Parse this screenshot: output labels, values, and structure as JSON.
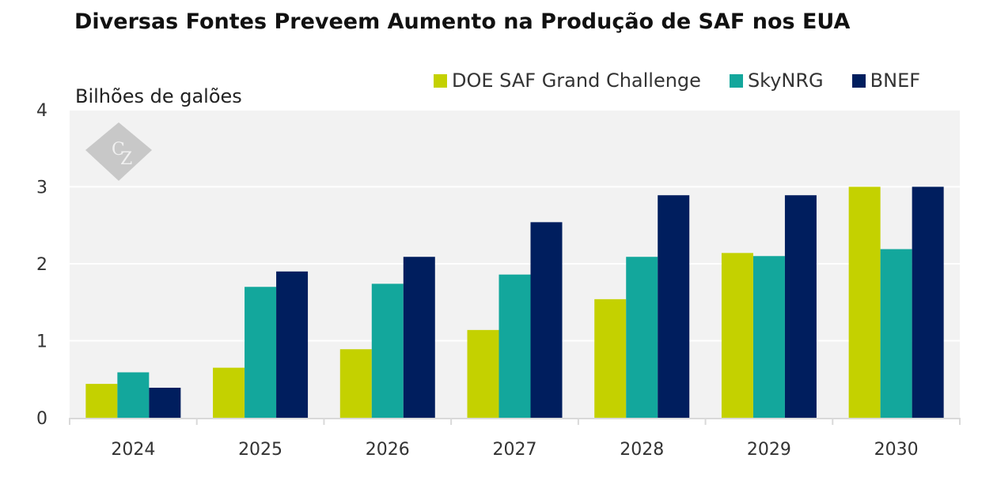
{
  "chart_data": {
    "type": "bar",
    "title": "Diversas Fontes Preveem Aumento na Produção de SAF nos EUA",
    "xlabel": "",
    "ylabel": "Bilhões de galões",
    "ylim": [
      0,
      4
    ],
    "yticks": [
      0,
      1,
      2,
      3,
      4
    ],
    "grid": true,
    "legend_position": "top-right",
    "categories": [
      "2024",
      "2025",
      "2026",
      "2027",
      "2028",
      "2029",
      "2030"
    ],
    "series": [
      {
        "name": "DOE SAF Grand Challenge",
        "color": "#c4d100",
        "values": [
          0.44,
          0.65,
          0.89,
          1.14,
          1.54,
          2.14,
          3.0
        ]
      },
      {
        "name": "SkyNRG",
        "color": "#13a79c",
        "values": [
          0.59,
          1.7,
          1.74,
          1.86,
          2.09,
          2.1,
          2.19
        ]
      },
      {
        "name": "BNEF",
        "color": "#001e5e",
        "values": [
          0.39,
          1.9,
          2.09,
          2.54,
          2.89,
          2.89,
          3.0
        ]
      }
    ]
  },
  "watermark": {
    "text": "CZ",
    "icon": "cz-logo-icon"
  }
}
